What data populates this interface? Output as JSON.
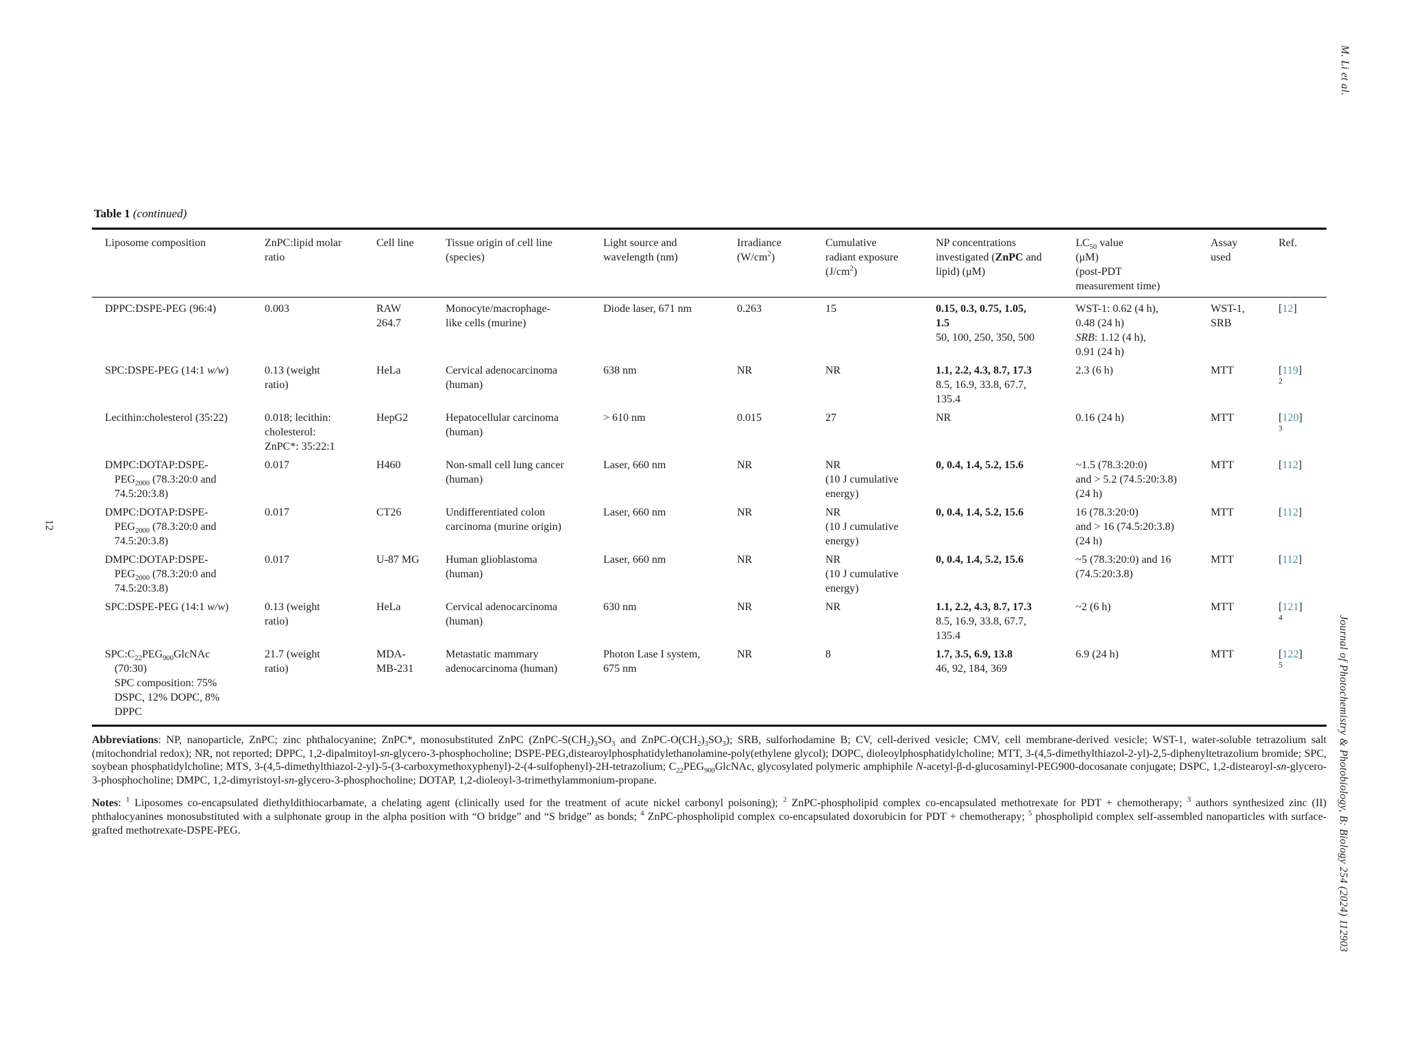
{
  "colors": {
    "link": "#3e93ad",
    "text": "#1c1c1c"
  },
  "page": {
    "running_author": "M. Li et al.",
    "running_journal": "Journal of Photochemistry & Photobiology, B: Biology 254 (2024) 112903",
    "page_number": "12"
  },
  "table": {
    "title_html": "<b>Table 1</b> <i>(continued)</i>",
    "headers": [
      "Liposome composition",
      "ZnPC:lipid molar<br>ratio",
      "Cell line",
      "Tissue origin of cell line<br>(species)",
      "Light source and<br>wavelength (nm)",
      "Irradiance<br>(W/cm<sup>2</sup>)",
      "Cumulative<br>radiant exposure<br>(J/cm<sup>2</sup>)",
      "NP concentrations<br>investigated (<b>ZnPC</b> and<br>lipid) (μM)",
      "LC<sub>50</sub> value<br>(μM)<br>(post-PDT<br>measurement time)",
      "Assay<br>used",
      "Ref."
    ],
    "rows": [
      [
        "DPPC:DSPE-PEG (96:4)",
        "0.003",
        "RAW<br>264.7",
        "Monocyte/macrophage-<br>like cells (murine)",
        "Diode laser, 671 nm",
        "0.263",
        "15",
        "<b>0.15, 0.3, 0.75, 1.05,<br>1.5</b><br>50, 100, 250, 350, 500",
        "WST-1: 0.62 (4 h),<br>0.48 (24 h)<br><i>SRB</i>: 1.12 (4 h),<br>0.91 (24 h)",
        "WST-1,<br>SRB",
        "[<a class=\"rl\">12</a>]"
      ],
      [
        "SPC:DSPE-PEG (14:1 <i>w/w</i>)",
        "0.13 (weight<br>ratio)",
        "HeLa",
        "Cervical adenocarcinoma<br>(human)",
        "638 nm",
        "NR",
        "NR",
        "<b>1.1, 2.2, 4.3, 8.7, 17.3</b><br>8.5, 16.9, 33.8, 67.7,<br>135.4",
        "2.3 (6 h)",
        "MTT",
        "[<a class=\"rl\">119</a>]<br><sup class=\"fn\">2</sup>"
      ],
      [
        "Lecithin:cholesterol (35:22)",
        "0.018; lecithin:<br>cholesterol:<br>ZnPC*: 35:22:1",
        "HepG2",
        "Hepatocellular carcinoma<br>(human)",
        "&gt; 610 nm",
        "0.015",
        "27",
        "NR",
        "0.16 (24 h)",
        "MTT",
        "[<a class=\"rl\">120</a>]<br><sup class=\"fn\">3</sup>"
      ],
      [
        "<div class=\"hang\">DMPC:DOTAP:DSPE-<br>PEG<sub>2000</sub> (78.3:20:0 and<br>74.5:20:3.8)</div>",
        "0.017",
        "H460",
        "Non-small cell lung cancer<br>(human)",
        "Laser, 660 nm",
        "NR",
        "NR<br>(10 J cumulative<br>energy)",
        "<b>0, 0.4, 1.4, 5.2, 15.6</b>",
        "~1.5 (78.3:20:0)<br>and &gt; 5.2 (74.5:20:3.8)<br>(24 h)",
        "MTT",
        "[<a class=\"rl\">112</a>]"
      ],
      [
        "<div class=\"hang\">DMPC:DOTAP:DSPE-<br>PEG<sub>2000</sub> (78.3:20:0 and<br>74.5:20:3.8)</div>",
        "0.017",
        "CT26",
        "Undifferentiated colon<br>carcinoma (murine origin)",
        "Laser, 660 nm",
        "NR",
        "NR<br>(10 J cumulative<br>energy)",
        "<b>0, 0.4, 1.4, 5.2, 15.6</b>",
        "16 (78.3:20:0)<br>and &gt; 16 (74.5:20:3.8)<br>(24 h)",
        "MTT",
        "[<a class=\"rl\">112</a>]"
      ],
      [
        "<div class=\"hang\">DMPC:DOTAP:DSPE-<br>PEG<sub>2000</sub> (78.3:20:0 and<br>74.5:20:3.8)</div>",
        "0.017",
        "U-87 MG",
        "Human glioblastoma<br>(human)",
        "Laser, 660 nm",
        "NR",
        "NR<br>(10 J cumulative<br>energy)",
        "<b>0, 0.4, 1.4, 5.2, 15.6</b>",
        "~5 (78.3:20:0) and 16<br>(74.5:20:3.8)",
        "MTT",
        "[<a class=\"rl\">112</a>]"
      ],
      [
        "SPC:DSPE-PEG (14:1 <i>w/w</i>)",
        "0.13 (weight<br>ratio)",
        "HeLa",
        "Cervical adenocarcinoma<br>(human)",
        "630 nm",
        "NR",
        "NR",
        "<b>1.1, 2.2, 4.3, 8.7, 17.3</b><br>8.5, 16.9, 33.8, 67.7,<br>135.4",
        "~2 (6 h)",
        "MTT",
        "[<a class=\"rl\">121</a>]<br><sup class=\"fn\">4</sup>"
      ],
      [
        "<div class=\"hang\">SPC:C<sub>22</sub>PEG<sub>900</sub>GlcNAc<br>(70:30)<br>SPC composition: 75%<br>DSPC, 12% DOPC, 8%<br>DPPC</div>",
        "21.7 (weight<br>ratio)",
        "MDA-<br>MB-231",
        "Metastatic mammary<br>adenocarcinoma (human)",
        "Photon Lase I system,<br>675 nm",
        "NR",
        "8",
        "<b>1.7, 3.5, 6.9, 13.8</b><br>46, 92, 184, 369",
        "6.9 (24 h)",
        "MTT",
        "[<a class=\"rl\">122</a>]<br><sup class=\"fn\">5</sup>"
      ]
    ]
  },
  "footer": {
    "abbreviations_html": "<b>Abbreviations</b>: NP, nanoparticle, ZnPC; zinc phthalocyanine; ZnPC*, monosubstituted ZnPC (ZnPC-S(CH<sub>2</sub>)<sub>3</sub>SO<sub>3</sub> and ZnPC-O(CH<sub>2</sub>)<sub>3</sub>SO<sub>3</sub>); SRB, sulforhodamine B; CV, cell-derived vesicle; CMV, cell membrane-derived vesicle; WST-1, water-soluble tetrazolium salt (mitochondrial redox); NR, not reported; DPPC, 1,2-dipalmitoyl-<i>sn</i>-glycero-3-phosphocholine; DSPE-PEG,distearoylphosphatidylethanolamine-poly(ethylene glycol); DOPC, dioleoylphosphatidylcholine; MTT, 3-(4,5-dimethylthiazol-2-yl)-2,5-diphenyltetrazolium bromide; SPC, soybean phosphatidylcholine; MTS, 3-(4,5-dimethylthiazol-2-yl)-5-(3-carboxymethoxyphenyl)-2-(4-sulfophenyl)-2H-tetrazolium; C<sub>22</sub>PEG<sub>900</sub>GlcNAc, glycosylated polymeric amphiphile <i>N</i>-acetyl-β-d-glucosaminyl-PEG900-docosanate conjugate; DSPC, 1,2-distearoyl-<i>sn</i>-glycero-3-phosphocholine; DMPC, 1,2-dimyristoyl-<i>sn</i>-glycero-3-phosphocholine; DOTAP, 1,2-dioleoyl-3-trimethylammonium-propane.",
    "notes_html": "<b>Notes</b>: <sup>1</sup> Liposomes co-encapsulated diethyldithiocarbamate, a chelating agent (clinically used for the treatment of acute nickel carbonyl poisoning); <sup>2</sup> ZnPC-phospholipid complex co-encapsulated methotrexate for PDT + chemotherapy; <sup>3</sup> authors synthesized zinc (II) phthalocyanines monosubstituted with a sulphonate group in the alpha position with “O bridge” and “S bridge” as bonds; <sup>4</sup> ZnPC-phospholipid complex co-encapsulated doxorubicin for PDT + chemotherapy; <sup>5</sup> phospholipid complex self-assembled nanoparticles with surface-grafted methotrexate-DSPE-PEG."
  }
}
